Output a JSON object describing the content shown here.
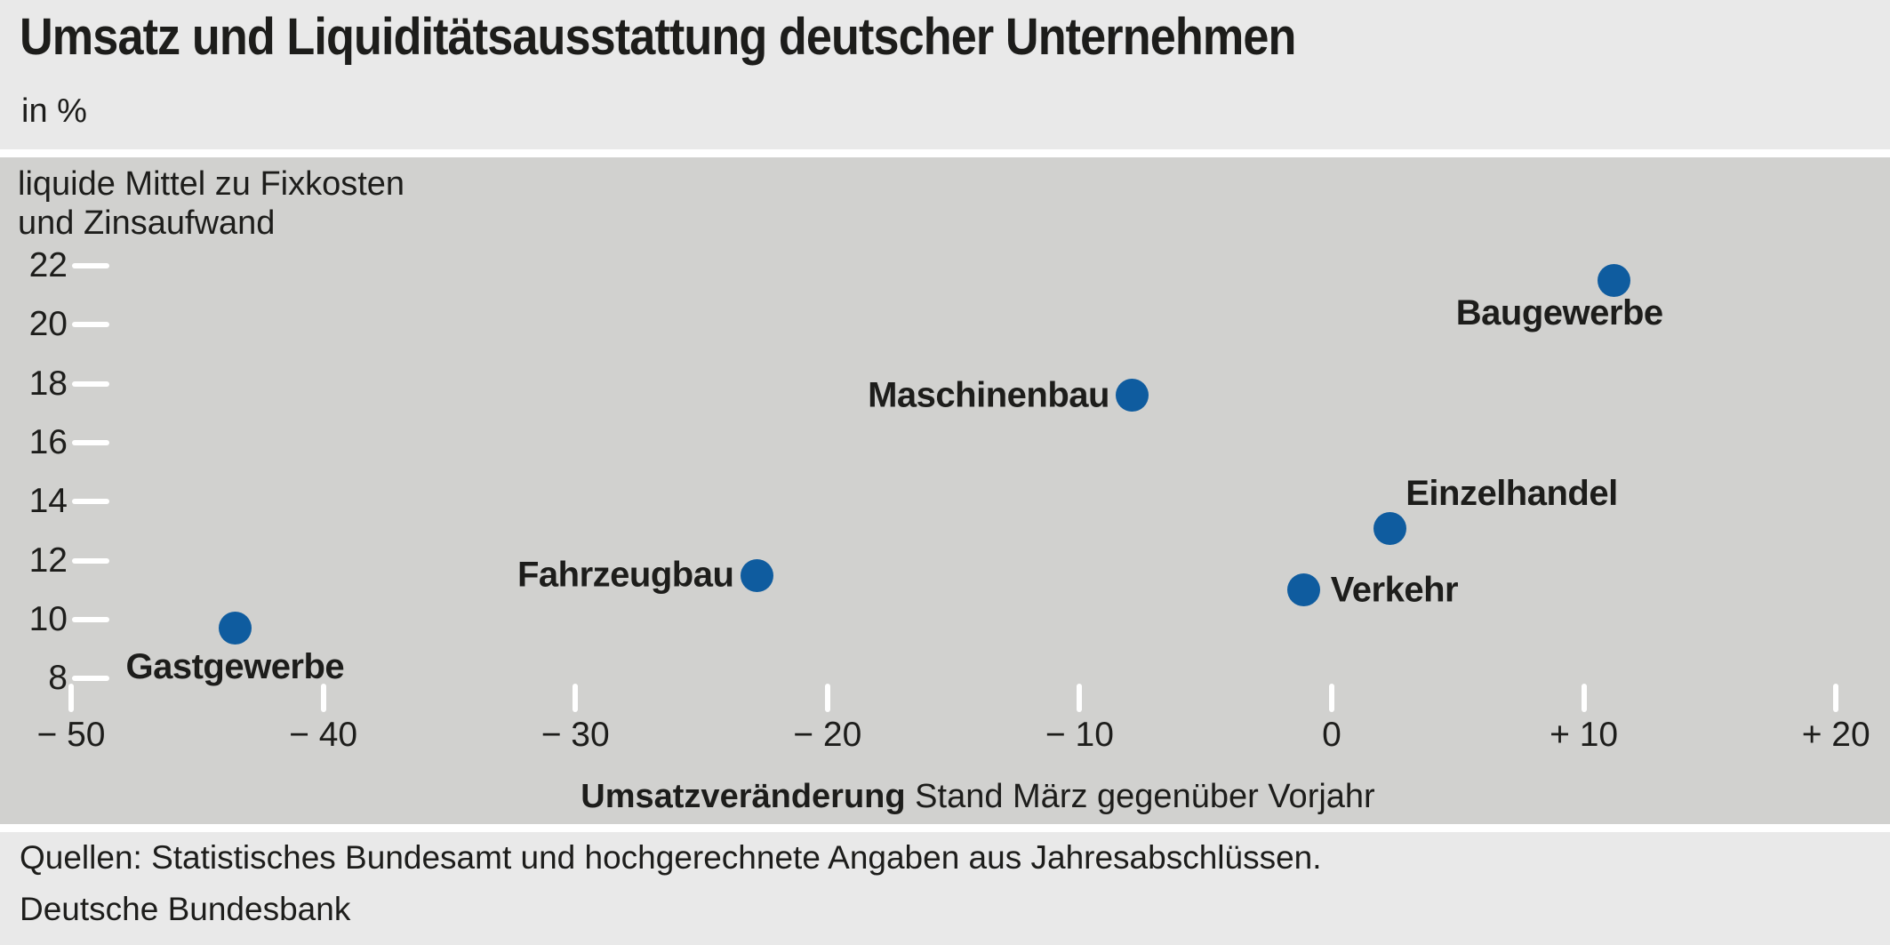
{
  "header": {
    "title": "Umsatz und Liquiditätsausstattung deutscher Unternehmen",
    "unit_note": "in %"
  },
  "footer": {
    "source_line": "Quellen: Statistisches Bundesamt und hochgerechnete Angaben aus Jahresabschlüssen.",
    "publisher": "Deutsche Bundesbank"
  },
  "chart_data": {
    "type": "scatter",
    "title": "Umsatz und Liquiditätsausstattung deutscher Unternehmen",
    "unit": "in %",
    "ylabel_line1": "liquide Mittel zu Fixkosten",
    "ylabel_line2": "und Zinsaufwand",
    "xlabel_bold": "Umsatzveränderung",
    "xlabel_rest": " Stand März gegenüber Vorjahr",
    "x_ticks": [
      {
        "value": -50,
        "label": "− 50"
      },
      {
        "value": -40,
        "label": "− 40"
      },
      {
        "value": -30,
        "label": "− 30"
      },
      {
        "value": -20,
        "label": "− 20"
      },
      {
        "value": -10,
        "label": "− 10"
      },
      {
        "value": 0,
        "label": "0"
      },
      {
        "value": 10,
        "label": "+ 10"
      },
      {
        "value": 20,
        "label": "+ 20"
      }
    ],
    "y_ticks": [
      22,
      20,
      18,
      16,
      14,
      12,
      10,
      8
    ],
    "xlim": [
      -52,
      22
    ],
    "ylim": [
      7,
      23
    ],
    "grid": false,
    "points": [
      {
        "label": "Gastgewerbe",
        "x": -43.5,
        "y": 9.7,
        "label_pos": "below"
      },
      {
        "label": "Fahrzeugbau",
        "x": -22.8,
        "y": 11.5,
        "label_pos": "left"
      },
      {
        "label": "Maschinenbau",
        "x": -7.9,
        "y": 17.6,
        "label_pos": "left"
      },
      {
        "label": "Verkehr",
        "x": -1.1,
        "y": 11.0,
        "label_pos": "right"
      },
      {
        "label": "Einzelhandel",
        "x": 2.3,
        "y": 13.1,
        "label_pos": "above-right"
      },
      {
        "label": "Baugewerbe",
        "x": 11.2,
        "y": 21.5,
        "label_pos": "below-left"
      }
    ],
    "colors": {
      "point": "#0f5c9f",
      "plot_background": "#d1d1cf",
      "band_background": "#e9e9e9",
      "tick_mark": "#ffffff",
      "text": "#1d1d1b"
    }
  }
}
